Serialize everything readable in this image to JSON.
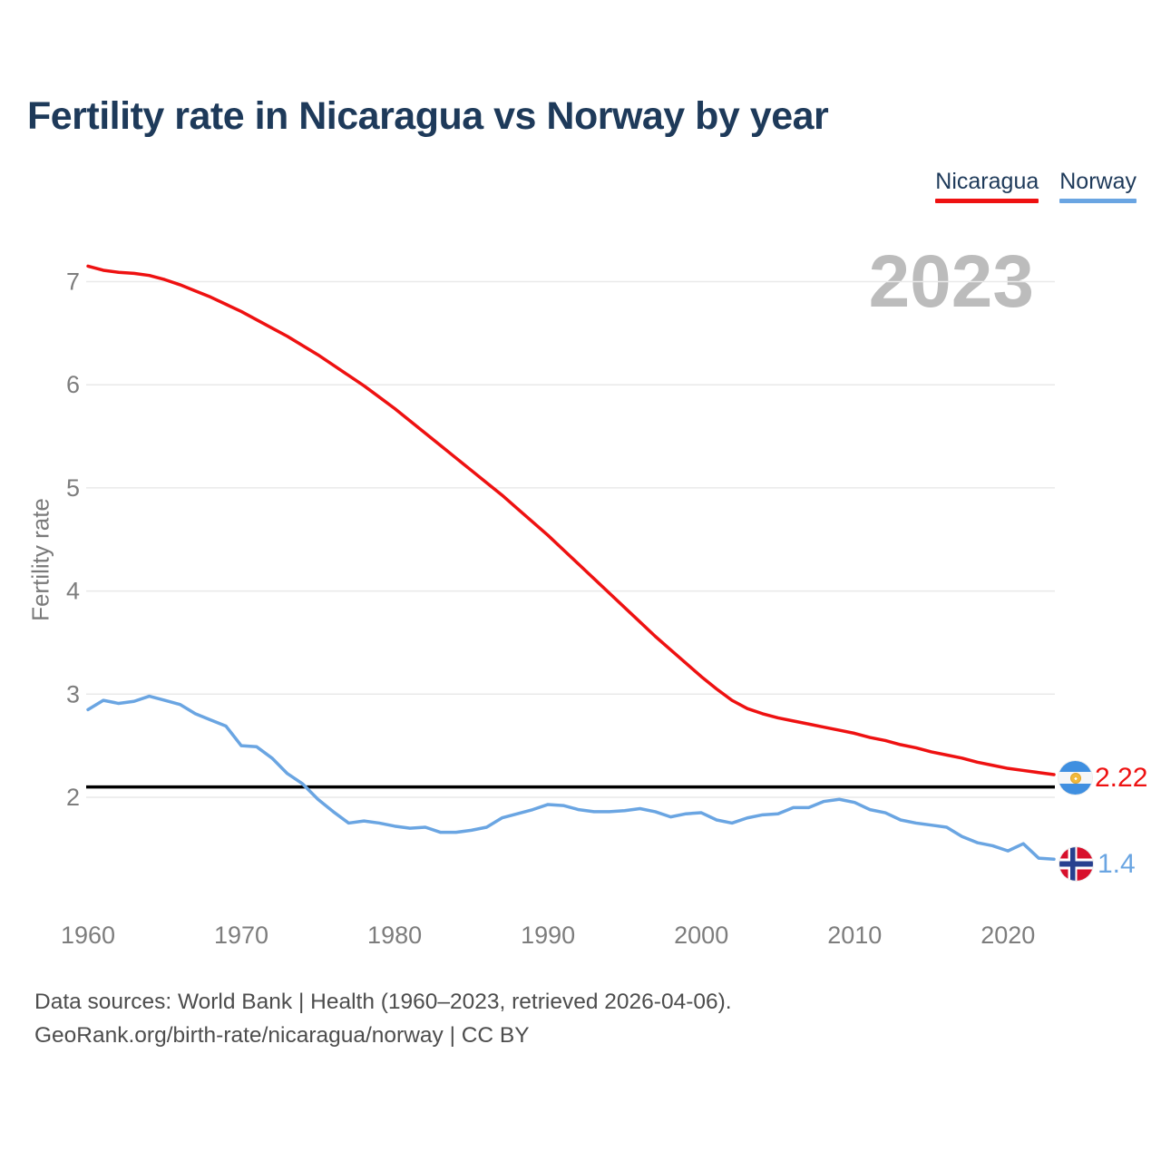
{
  "title": "Fertility rate in Nicaragua vs Norway by year",
  "watermark": "2023",
  "legend": [
    {
      "label": "Nicaragua",
      "color": "#ee1111"
    },
    {
      "label": "Norway",
      "color": "#6aa5e2"
    }
  ],
  "end_labels": [
    {
      "series": "Nicaragua",
      "value": "2.22",
      "flag": "nicaragua-flag"
    },
    {
      "series": "Norway",
      "value": "1.4",
      "flag": "norway-flag"
    }
  ],
  "footer": {
    "line1": "Data sources: World Bank | Health (1960–2023, retrieved 2026-04-06).",
    "line2": "GeoRank.org/birth-rate/nicaragua/norway | CC BY"
  },
  "chart_data": {
    "type": "line",
    "title": "Fertility rate in Nicaragua vs Norway by year",
    "xlabel": "",
    "ylabel": "Fertility rate",
    "x_ticks": [
      1960,
      1970,
      1980,
      1990,
      2000,
      2010,
      2020
    ],
    "y_ticks": [
      2,
      3,
      4,
      5,
      6,
      7
    ],
    "xlim": [
      1960,
      2023
    ],
    "ylim": [
      1.3,
      7.3
    ],
    "grid": true,
    "legend_position": "top-right",
    "reference_line": 2.1,
    "reference_line_color": "#000000",
    "gridline_color": "#e9e9e9",
    "tick_color": "#7d7d7d",
    "x": [
      1960,
      1961,
      1962,
      1963,
      1964,
      1965,
      1966,
      1967,
      1968,
      1969,
      1970,
      1971,
      1972,
      1973,
      1974,
      1975,
      1976,
      1977,
      1978,
      1979,
      1980,
      1981,
      1982,
      1983,
      1984,
      1985,
      1986,
      1987,
      1988,
      1989,
      1990,
      1991,
      1992,
      1993,
      1994,
      1995,
      1996,
      1997,
      1998,
      1999,
      2000,
      2001,
      2002,
      2003,
      2004,
      2005,
      2006,
      2007,
      2008,
      2009,
      2010,
      2011,
      2012,
      2013,
      2014,
      2015,
      2016,
      2017,
      2018,
      2019,
      2020,
      2021,
      2022,
      2023
    ],
    "series": [
      {
        "name": "Nicaragua",
        "color": "#ee1111",
        "end_value": 2.22,
        "values": [
          7.15,
          7.11,
          7.09,
          7.08,
          7.06,
          7.02,
          6.97,
          6.91,
          6.85,
          6.78,
          6.71,
          6.63,
          6.55,
          6.47,
          6.38,
          6.29,
          6.19,
          6.09,
          5.99,
          5.88,
          5.77,
          5.65,
          5.53,
          5.41,
          5.29,
          5.17,
          5.05,
          4.93,
          4.8,
          4.67,
          4.54,
          4.4,
          4.26,
          4.12,
          3.98,
          3.84,
          3.7,
          3.56,
          3.43,
          3.3,
          3.17,
          3.05,
          2.94,
          2.86,
          2.81,
          2.77,
          2.74,
          2.71,
          2.68,
          2.65,
          2.62,
          2.58,
          2.55,
          2.51,
          2.48,
          2.44,
          2.41,
          2.38,
          2.34,
          2.31,
          2.28,
          2.26,
          2.24,
          2.22
        ]
      },
      {
        "name": "Norway",
        "color": "#6aa5e2",
        "end_value": 1.4,
        "values": [
          2.85,
          2.94,
          2.91,
          2.93,
          2.98,
          2.94,
          2.9,
          2.81,
          2.75,
          2.69,
          2.5,
          2.49,
          2.38,
          2.23,
          2.13,
          1.98,
          1.86,
          1.75,
          1.77,
          1.75,
          1.72,
          1.7,
          1.71,
          1.66,
          1.66,
          1.68,
          1.71,
          1.8,
          1.84,
          1.88,
          1.93,
          1.92,
          1.88,
          1.86,
          1.86,
          1.87,
          1.89,
          1.86,
          1.81,
          1.84,
          1.85,
          1.78,
          1.75,
          1.8,
          1.83,
          1.84,
          1.9,
          1.9,
          1.96,
          1.98,
          1.95,
          1.88,
          1.85,
          1.78,
          1.75,
          1.73,
          1.71,
          1.62,
          1.56,
          1.53,
          1.48,
          1.55,
          1.41,
          1.4
        ]
      }
    ]
  }
}
